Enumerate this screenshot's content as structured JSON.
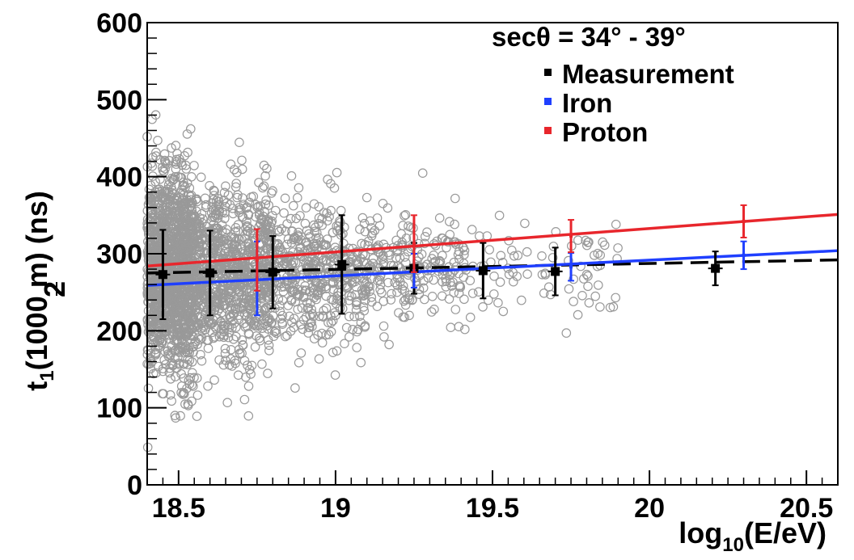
{
  "chart_data": {
    "type": "scatter",
    "title": "",
    "xlabel": {
      "main": "log",
      "sub": "10",
      "rest": "(E/eV)"
    },
    "ylabel": {
      "main": "t",
      "sub1": "1",
      "sub2": "2",
      "rest": "(1000 m) (ns)"
    },
    "xlim": [
      18.4,
      20.6
    ],
    "ylim": [
      0,
      600
    ],
    "xticks": [
      {
        "value": 18.5,
        "label": "18.5"
      },
      {
        "value": 19.0,
        "label": "19"
      },
      {
        "value": 19.5,
        "label": "19.5"
      },
      {
        "value": 20.0,
        "label": "20"
      },
      {
        "value": 20.5,
        "label": "20.5"
      }
    ],
    "yticks": [
      {
        "value": 0,
        "label": "0"
      },
      {
        "value": 100,
        "label": "100"
      },
      {
        "value": 200,
        "label": "200"
      },
      {
        "value": 300,
        "label": "300"
      },
      {
        "value": 400,
        "label": "400"
      },
      {
        "value": 500,
        "label": "500"
      },
      {
        "value": 600,
        "label": "600"
      }
    ],
    "legend": {
      "title": "secθ = 34° - 39°",
      "placement": "top-right",
      "entries": [
        {
          "label": "Measurement",
          "color": "#000000"
        },
        {
          "label": "Iron",
          "color": "#1f3fff"
        },
        {
          "label": "Proton",
          "color": "#e8262c"
        }
      ]
    },
    "colors": {
      "scatter": "#999999",
      "measurement": "#000000",
      "iron": "#1f3fff",
      "proton": "#e8262c"
    },
    "scatter_points": {
      "description": "about 3000 individual events, densest near log10(E/eV)=18.4-18.6",
      "count": 3000,
      "clusters": [
        {
          "x_range": [
            18.4,
            18.55
          ],
          "y_mean": 275,
          "y_sd": 65,
          "weight": 0.45
        },
        {
          "x_range": [
            18.55,
            18.8
          ],
          "y_mean": 272,
          "y_sd": 55,
          "weight": 0.3
        },
        {
          "x_range": [
            18.8,
            19.1
          ],
          "y_mean": 278,
          "y_sd": 45,
          "weight": 0.15
        },
        {
          "x_range": [
            19.1,
            19.4
          ],
          "y_mean": 280,
          "y_sd": 35,
          "weight": 0.07
        },
        {
          "x_range": [
            19.4,
            19.9
          ],
          "y_mean": 278,
          "y_sd": 35,
          "weight": 0.03
        }
      ]
    },
    "series": [
      {
        "name": "Measurement",
        "kind": "points_with_errors",
        "points": [
          {
            "x": 18.45,
            "y": 273,
            "err": 58
          },
          {
            "x": 18.6,
            "y": 275,
            "err": 55
          },
          {
            "x": 18.8,
            "y": 276,
            "err": 47
          },
          {
            "x": 19.02,
            "y": 286,
            "err": 64
          },
          {
            "x": 19.25,
            "y": 281,
            "err": 33
          },
          {
            "x": 19.47,
            "y": 278,
            "err": 36
          },
          {
            "x": 19.7,
            "y": 277,
            "err": 31
          },
          {
            "x": 20.21,
            "y": 281,
            "err": 22
          }
        ],
        "fit": {
          "x": [
            18.4,
            20.6
          ],
          "y": [
            275,
            292
          ],
          "style": "dashed"
        }
      },
      {
        "name": "Iron",
        "kind": "points_with_errors",
        "points": [
          {
            "x": 18.75,
            "y": 268,
            "err": 48
          },
          {
            "x": 19.25,
            "y": 278,
            "err": 22
          },
          {
            "x": 19.75,
            "y": 283,
            "err": 18
          },
          {
            "x": 20.3,
            "y": 298,
            "err": 18
          }
        ],
        "fit": {
          "x": [
            18.4,
            20.6
          ],
          "y": [
            259,
            304
          ],
          "style": "solid"
        }
      },
      {
        "name": "Proton",
        "kind": "points_with_errors",
        "points": [
          {
            "x": 18.75,
            "y": 292,
            "err": 40
          },
          {
            "x": 19.25,
            "y": 313,
            "err": 37
          },
          {
            "x": 19.75,
            "y": 323,
            "err": 21
          },
          {
            "x": 20.3,
            "y": 342,
            "err": 21
          }
        ],
        "fit": {
          "x": [
            18.4,
            20.6
          ],
          "y": [
            284,
            351
          ],
          "style": "solid"
        }
      }
    ],
    "grid": false
  }
}
